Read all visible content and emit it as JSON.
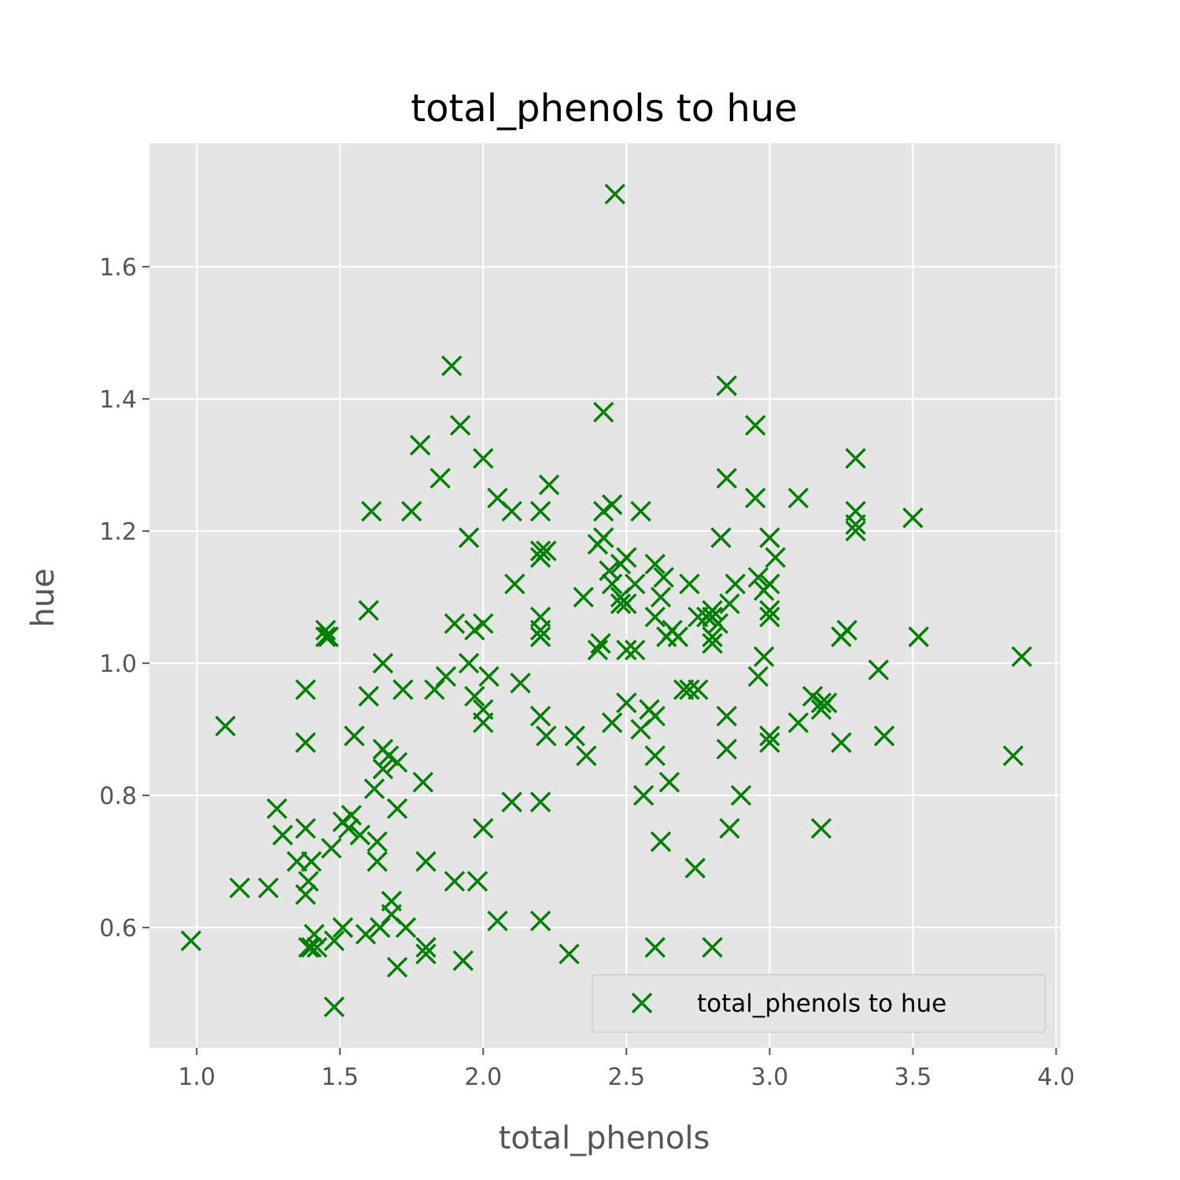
{
  "chart_data": {
    "type": "scatter",
    "title": "total_phenols to hue",
    "xlabel": "total_phenols",
    "ylabel": "hue",
    "xlim": [
      0.835,
      4.015
    ],
    "ylim": [
      0.418,
      1.787
    ],
    "xticks": [
      1.0,
      1.5,
      2.0,
      2.5,
      3.0,
      3.5,
      4.0
    ],
    "xtick_labels": [
      "1.0",
      "1.5",
      "2.0",
      "2.5",
      "3.0",
      "3.5",
      "4.0"
    ],
    "yticks": [
      0.6,
      0.8,
      1.0,
      1.2,
      1.4,
      1.6
    ],
    "ytick_labels": [
      "0.6",
      "0.8",
      "1.0",
      "1.2",
      "1.4",
      "1.6"
    ],
    "grid": true,
    "legend_position": "bottom-right",
    "series": [
      {
        "name": "total_phenols to hue",
        "color": "#008000",
        "marker": "x",
        "points": [
          [
            0.98,
            0.58
          ],
          [
            1.1,
            0.905
          ],
          [
            1.15,
            0.66
          ],
          [
            1.25,
            0.66
          ],
          [
            1.28,
            0.78
          ],
          [
            1.3,
            0.74
          ],
          [
            1.35,
            0.7
          ],
          [
            1.38,
            0.96
          ],
          [
            1.38,
            0.88
          ],
          [
            1.38,
            0.75
          ],
          [
            1.38,
            0.65
          ],
          [
            1.39,
            0.67
          ],
          [
            1.39,
            0.57
          ],
          [
            1.4,
            0.7
          ],
          [
            1.4,
            0.57
          ],
          [
            1.41,
            0.59
          ],
          [
            1.42,
            0.57
          ],
          [
            1.45,
            1.05
          ],
          [
            1.45,
            1.04
          ],
          [
            1.46,
            1.04
          ],
          [
            1.47,
            0.72
          ],
          [
            1.48,
            0.48
          ],
          [
            1.48,
            0.58
          ],
          [
            1.51,
            0.76
          ],
          [
            1.51,
            0.6
          ],
          [
            1.53,
            0.75
          ],
          [
            1.54,
            0.77
          ],
          [
            1.55,
            0.89
          ],
          [
            1.57,
            0.74
          ],
          [
            1.59,
            0.59
          ],
          [
            1.6,
            1.08
          ],
          [
            1.6,
            0.95
          ],
          [
            1.61,
            1.23
          ],
          [
            1.62,
            0.81
          ],
          [
            1.63,
            0.73
          ],
          [
            1.63,
            0.7
          ],
          [
            1.64,
            0.6
          ],
          [
            1.65,
            1.0
          ],
          [
            1.65,
            0.87
          ],
          [
            1.65,
            0.84
          ],
          [
            1.67,
            0.86
          ],
          [
            1.68,
            0.64
          ],
          [
            1.68,
            0.62
          ],
          [
            1.7,
            0.85
          ],
          [
            1.7,
            0.78
          ],
          [
            1.7,
            0.54
          ],
          [
            1.72,
            0.96
          ],
          [
            1.73,
            0.6
          ],
          [
            1.75,
            1.23
          ],
          [
            1.78,
            1.33
          ],
          [
            1.79,
            0.82
          ],
          [
            1.8,
            0.7
          ],
          [
            1.8,
            0.57
          ],
          [
            1.8,
            0.56
          ],
          [
            1.83,
            0.96
          ],
          [
            1.85,
            1.28
          ],
          [
            1.87,
            0.98
          ],
          [
            1.89,
            1.45
          ],
          [
            1.9,
            1.06
          ],
          [
            1.9,
            0.67
          ],
          [
            1.92,
            1.36
          ],
          [
            1.93,
            0.55
          ],
          [
            1.95,
            1.19
          ],
          [
            1.95,
            1.0
          ],
          [
            1.97,
            1.05
          ],
          [
            1.97,
            0.95
          ],
          [
            1.98,
            0.67
          ],
          [
            2.0,
            1.31
          ],
          [
            2.0,
            1.06
          ],
          [
            2.0,
            0.93
          ],
          [
            2.0,
            0.91
          ],
          [
            2.0,
            0.75
          ],
          [
            2.02,
            0.98
          ],
          [
            2.05,
            1.25
          ],
          [
            2.05,
            0.61
          ],
          [
            2.1,
            1.23
          ],
          [
            2.1,
            0.79
          ],
          [
            2.11,
            1.12
          ],
          [
            2.13,
            0.97
          ],
          [
            2.2,
            1.23
          ],
          [
            2.2,
            1.17
          ],
          [
            2.2,
            1.16
          ],
          [
            2.2,
            1.07
          ],
          [
            2.2,
            1.05
          ],
          [
            2.2,
            1.04
          ],
          [
            2.2,
            0.92
          ],
          [
            2.2,
            0.79
          ],
          [
            2.2,
            0.61
          ],
          [
            2.22,
            1.17
          ],
          [
            2.22,
            0.89
          ],
          [
            2.23,
            1.27
          ],
          [
            2.3,
            0.56
          ],
          [
            2.32,
            0.89
          ],
          [
            2.35,
            1.1
          ],
          [
            2.36,
            0.86
          ],
          [
            2.4,
            1.18
          ],
          [
            2.4,
            1.02
          ],
          [
            2.41,
            1.03
          ],
          [
            2.42,
            1.38
          ],
          [
            2.42,
            1.23
          ],
          [
            2.42,
            1.19
          ],
          [
            2.44,
            1.14
          ],
          [
            2.45,
            1.24
          ],
          [
            2.45,
            1.12
          ],
          [
            2.45,
            0.91
          ],
          [
            2.46,
            1.71
          ],
          [
            2.48,
            1.15
          ],
          [
            2.48,
            1.1
          ],
          [
            2.48,
            1.09
          ],
          [
            2.5,
            1.16
          ],
          [
            2.5,
            1.09
          ],
          [
            2.5,
            1.02
          ],
          [
            2.5,
            0.94
          ],
          [
            2.53,
            1.12
          ],
          [
            2.53,
            1.02
          ],
          [
            2.55,
            1.23
          ],
          [
            2.55,
            0.9
          ],
          [
            2.56,
            0.8
          ],
          [
            2.58,
            0.93
          ],
          [
            2.6,
            1.15
          ],
          [
            2.6,
            1.07
          ],
          [
            2.6,
            0.92
          ],
          [
            2.6,
            0.86
          ],
          [
            2.6,
            0.57
          ],
          [
            2.62,
            1.1
          ],
          [
            2.62,
            0.73
          ],
          [
            2.63,
            1.13
          ],
          [
            2.64,
            1.04
          ],
          [
            2.65,
            0.82
          ],
          [
            2.66,
            1.05
          ],
          [
            2.68,
            1.04
          ],
          [
            2.7,
            0.96
          ],
          [
            2.72,
            1.12
          ],
          [
            2.72,
            0.96
          ],
          [
            2.74,
            0.69
          ],
          [
            2.75,
            0.96
          ],
          [
            2.75,
            1.07
          ],
          [
            2.78,
            1.07
          ],
          [
            2.8,
            1.08
          ],
          [
            2.8,
            1.07
          ],
          [
            2.8,
            1.04
          ],
          [
            2.8,
            1.03
          ],
          [
            2.8,
            0.57
          ],
          [
            2.82,
            1.06
          ],
          [
            2.83,
            1.19
          ],
          [
            2.85,
            1.42
          ],
          [
            2.85,
            1.28
          ],
          [
            2.85,
            0.92
          ],
          [
            2.85,
            0.87
          ],
          [
            2.86,
            0.75
          ],
          [
            2.86,
            1.09
          ],
          [
            2.88,
            1.12
          ],
          [
            2.9,
            0.8
          ],
          [
            2.95,
            1.36
          ],
          [
            2.95,
            1.25
          ],
          [
            2.96,
            1.13
          ],
          [
            2.96,
            0.98
          ],
          [
            2.98,
            1.01
          ],
          [
            2.98,
            1.11
          ],
          [
            3.0,
            1.19
          ],
          [
            3.0,
            1.12
          ],
          [
            3.0,
            1.07
          ],
          [
            3.0,
            1.08
          ],
          [
            3.0,
            0.89
          ],
          [
            3.0,
            0.88
          ],
          [
            3.02,
            1.16
          ],
          [
            3.1,
            1.25
          ],
          [
            3.1,
            0.91
          ],
          [
            3.15,
            0.95
          ],
          [
            3.18,
            0.94
          ],
          [
            3.18,
            0.93
          ],
          [
            3.18,
            0.75
          ],
          [
            3.2,
            0.94
          ],
          [
            3.25,
            1.04
          ],
          [
            3.25,
            0.88
          ],
          [
            3.27,
            1.05
          ],
          [
            3.3,
            1.31
          ],
          [
            3.3,
            1.23
          ],
          [
            3.3,
            1.21
          ],
          [
            3.3,
            1.2
          ],
          [
            3.38,
            0.99
          ],
          [
            3.4,
            0.89
          ],
          [
            3.5,
            1.22
          ],
          [
            3.52,
            1.04
          ],
          [
            3.85,
            0.86
          ],
          [
            3.88,
            1.01
          ]
        ]
      }
    ]
  }
}
